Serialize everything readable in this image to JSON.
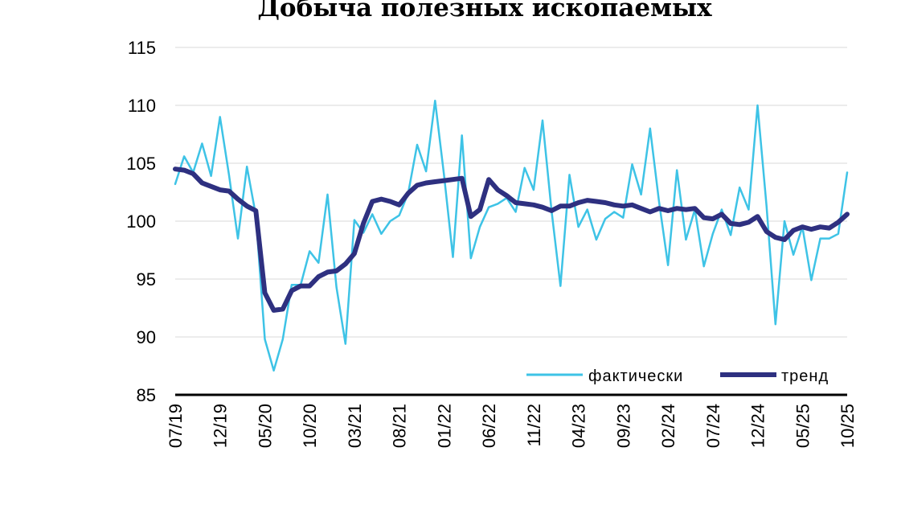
{
  "chart_data": {
    "type": "line",
    "title": "Добыча полезных ископаемых",
    "xlabel": "",
    "ylabel": "",
    "ylim": [
      85,
      115
    ],
    "yticks": [
      "115",
      "110",
      "105",
      "100",
      "95",
      "90",
      "85"
    ],
    "ytick_values": [
      115,
      110,
      105,
      100,
      95,
      90,
      85
    ],
    "xtick_labels": [
      "07/19",
      "12/19",
      "05/20",
      "10/20",
      "03/21",
      "08/21",
      "01/22",
      "06/22",
      "11/22",
      "04/23",
      "09/23",
      "02/24",
      "07/24",
      "12/24",
      "05/25",
      "10/25"
    ],
    "grid": "horizontal",
    "legend_position": "bottom-right",
    "x": [
      "07/19",
      "08/19",
      "09/19",
      "10/19",
      "11/19",
      "12/19",
      "01/20",
      "02/20",
      "03/20",
      "04/20",
      "05/20",
      "06/20",
      "07/20",
      "08/20",
      "09/20",
      "10/20",
      "11/20",
      "12/20",
      "01/21",
      "02/21",
      "03/21",
      "04/21",
      "05/21",
      "06/21",
      "07/21",
      "08/21",
      "09/21",
      "10/21",
      "11/21",
      "12/21",
      "01/22",
      "02/22",
      "03/22",
      "04/22",
      "05/22",
      "06/22",
      "07/22",
      "08/22",
      "09/22",
      "10/22",
      "11/22",
      "12/22",
      "01/23",
      "02/23",
      "03/23",
      "04/23",
      "05/23",
      "06/23",
      "07/23",
      "08/23",
      "09/23",
      "10/23",
      "11/23",
      "12/23",
      "01/24",
      "02/24",
      "03/24",
      "04/24",
      "05/24",
      "06/24",
      "07/24",
      "08/24",
      "09/24",
      "10/24",
      "11/24",
      "12/24",
      "01/25",
      "02/25",
      "03/25",
      "04/25",
      "05/25",
      "06/25",
      "07/25",
      "08/25",
      "09/25",
      "10/25"
    ],
    "series": [
      {
        "name": "фактически",
        "color": "#3ec3e6",
        "values": [
          103.2,
          105.6,
          104.2,
          106.7,
          103.9,
          109.0,
          104.0,
          98.5,
          104.7,
          100.5,
          89.8,
          87.1,
          89.8,
          94.5,
          94.5,
          97.4,
          96.4,
          102.3,
          94.3,
          89.4,
          100.1,
          99.0,
          100.6,
          98.9,
          100.0,
          100.5,
          102.4,
          106.6,
          104.3,
          110.4,
          104.0,
          96.9,
          107.4,
          96.8,
          99.5,
          101.2,
          101.5,
          102.0,
          100.8,
          104.6,
          102.7,
          108.7,
          100.9,
          94.4,
          104.0,
          99.5,
          101.0,
          98.4,
          100.2,
          100.8,
          100.3,
          104.9,
          102.3,
          108.0,
          101.7,
          96.2,
          104.4,
          98.4,
          101.0,
          96.1,
          98.9,
          101.0,
          98.8,
          102.9,
          101.0,
          110.0,
          101.3,
          91.1,
          100.0,
          97.1,
          99.5,
          94.9,
          98.5,
          98.5,
          98.9,
          104.2
        ]
      },
      {
        "name": "тренд",
        "color": "#2e3080",
        "values": [
          104.5,
          104.4,
          104.1,
          103.3,
          103.0,
          102.7,
          102.6,
          101.9,
          101.3,
          100.9,
          93.8,
          92.3,
          92.4,
          94.0,
          94.4,
          94.4,
          95.2,
          95.6,
          95.7,
          96.3,
          97.2,
          99.8,
          101.7,
          101.9,
          101.7,
          101.4,
          102.4,
          103.1,
          103.3,
          103.4,
          103.5,
          103.6,
          103.7,
          100.4,
          101.0,
          103.6,
          102.7,
          102.2,
          101.6,
          101.5,
          101.4,
          101.2,
          100.9,
          101.3,
          101.3,
          101.6,
          101.8,
          101.7,
          101.6,
          101.4,
          101.3,
          101.4,
          101.1,
          100.8,
          101.1,
          100.9,
          101.1,
          101.0,
          101.1,
          100.3,
          100.2,
          100.6,
          99.8,
          99.7,
          99.9,
          100.4,
          99.1,
          98.6,
          98.4,
          99.2,
          99.5,
          99.3,
          99.5,
          99.4,
          99.9,
          100.6
        ]
      }
    ]
  }
}
